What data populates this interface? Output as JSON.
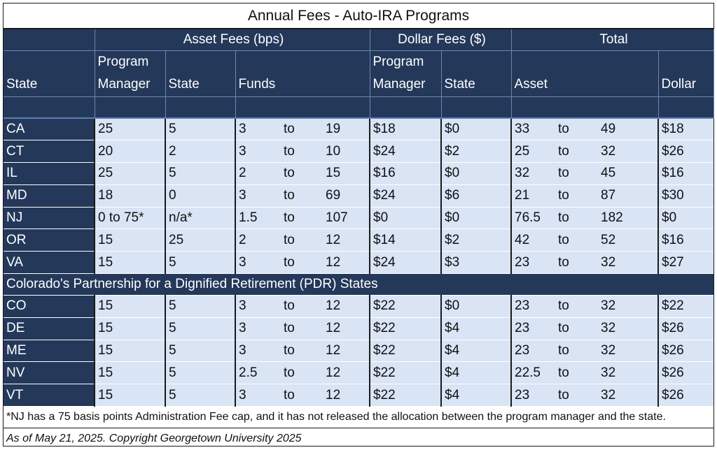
{
  "title": "Annual Fees - Auto-IRA Programs",
  "groups": {
    "asset_fees": "Asset Fees (bps)",
    "dollar_fees": "Dollar Fees ($)",
    "total": "Total"
  },
  "headers": {
    "state": "State",
    "program_manager_1": "Program",
    "program_manager_2": "Manager",
    "asset_state": "State",
    "funds": "Funds",
    "dollar_program_manager_1": "Program",
    "dollar_program_manager_2": "Manager",
    "dollar_state": "State",
    "total_asset": "Asset",
    "total_dollar": "Dollar"
  },
  "rows_main": [
    [
      "CA",
      "25",
      "5",
      "3",
      "to",
      "19",
      "$18",
      "$0",
      "33",
      "to",
      "49",
      "$18"
    ],
    [
      "CT",
      "20",
      "2",
      "3",
      "to",
      "10",
      "$24",
      "$2",
      "25",
      "to",
      "32",
      "$26"
    ],
    [
      "IL",
      "25",
      "5",
      "2",
      "to",
      "15",
      "$16",
      "$0",
      "32",
      "to",
      "45",
      "$16"
    ],
    [
      "MD",
      "18",
      "0",
      "3",
      "to",
      "69",
      "$24",
      "$6",
      "21",
      "to",
      "87",
      "$30"
    ],
    [
      "NJ",
      "0 to 75*",
      "n/a*",
      "1.5",
      "to",
      "107",
      "$0",
      "$0",
      "76.5",
      "to",
      "182",
      "$0"
    ],
    [
      "OR",
      "15",
      "25",
      "2",
      "to",
      "12",
      "$14",
      "$2",
      "42",
      "to",
      "52",
      "$16"
    ],
    [
      "VA",
      "15",
      "5",
      "3",
      "to",
      "12",
      "$24",
      "$3",
      "23",
      "to",
      "32",
      "$27"
    ]
  ],
  "section_label": "Colorado's Partnership for a Dignified Retirement (PDR) States",
  "rows_pdr": [
    [
      "CO",
      "15",
      "5",
      "3",
      "to",
      "12",
      "$22",
      "$0",
      "23",
      "to",
      "32",
      "$22"
    ],
    [
      "DE",
      "15",
      "5",
      "3",
      "to",
      "12",
      "$22",
      "$4",
      "23",
      "to",
      "32",
      "$26"
    ],
    [
      "ME",
      "15",
      "5",
      "3",
      "to",
      "12",
      "$22",
      "$4",
      "23",
      "to",
      "32",
      "$26"
    ],
    [
      "NV",
      "15",
      "5",
      "2.5",
      "to",
      "12",
      "$22",
      "$4",
      "22.5",
      "to",
      "32",
      "$26"
    ],
    [
      "VT",
      "15",
      "5",
      "3",
      "to",
      "12",
      "$22",
      "$4",
      "23",
      "to",
      "32",
      "$26"
    ]
  ],
  "footnote": "*NJ has a 75 basis points Administration Fee cap, and it has not released the allocation between the program manager and the state.",
  "copyright": "As of May 21, 2025. Copyright Georgetown University 2025"
}
